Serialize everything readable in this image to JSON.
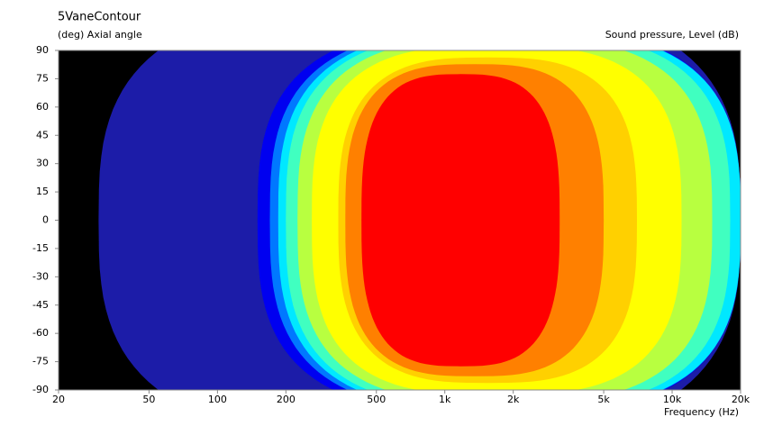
{
  "chart_data": {
    "type": "contour",
    "title": "5VaneContour",
    "ylabel": "(deg)  Axial angle",
    "zlabel": "Sound pressure, Level  (dB)",
    "xlabel": "Frequency  (Hz)",
    "xscale": "log",
    "xlim": [
      20,
      20000
    ],
    "xticks": [
      20,
      50,
      100,
      200,
      500,
      {
        "value": 1000,
        "label": "1k"
      },
      {
        "value": 2000,
        "label": "2k"
      },
      {
        "value": 5000,
        "label": "5k"
      },
      {
        "value": 10000,
        "label": "10k"
      },
      {
        "value": 20000,
        "label": "20k"
      }
    ],
    "ylim": [
      -90,
      90
    ],
    "yticks": [
      90,
      75,
      60,
      45,
      30,
      15,
      0,
      -15,
      -30,
      -45,
      -60,
      -75,
      -90
    ],
    "background": "#000000",
    "contours": [
      {
        "color": "#1c1ca8",
        "x": [
          30,
          20000
        ]
      },
      {
        "color": "#0000f0",
        "x": [
          150,
          20000
        ]
      },
      {
        "color": "#0078ff",
        "x": [
          170,
          20000
        ]
      },
      {
        "color": "#00e8ff",
        "x": [
          185,
          20000
        ]
      },
      {
        "color": "#40ffc0",
        "x": [
          200,
          18000
        ]
      },
      {
        "color": "#b8ff40",
        "x": [
          225,
          15000
        ]
      },
      {
        "color": "#ffff00",
        "x": [
          260,
          11000
        ]
      },
      {
        "color": "#ffd000",
        "x": [
          340,
          7000
        ]
      },
      {
        "color": "#ff8000",
        "x": [
          365,
          5000
        ]
      },
      {
        "color": "#ff0000",
        "x": [
          430,
          3200
        ]
      }
    ]
  }
}
